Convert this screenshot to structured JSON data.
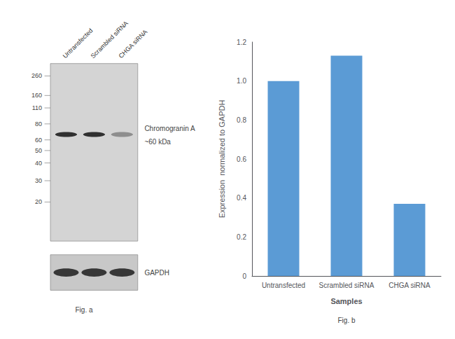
{
  "chart_data": [
    {
      "type": "western_blot",
      "categories": [
        "Untransfected",
        "Scrambled siRNA",
        "CHGA siRNA"
      ],
      "yticks": [
        260,
        160,
        110,
        80,
        60,
        50,
        40,
        30,
        20
      ],
      "series": [
        {
          "name": "Chromogranin A",
          "color": "#d4d4d4",
          "colors": [
            "#222222",
            "#222222",
            "#888888"
          ]
        },
        {
          "name": "GAPDH",
          "color": "#c8c8c8",
          "colors": [
            "#222222",
            "#222222",
            "#222222"
          ]
        }
      ],
      "annotations": [
        "~60 kDa",
        "Fig. a"
      ]
    },
    {
      "type": "bar",
      "categories": [
        "Untransfected",
        "Scrambled siRNA",
        "CHGA siRNA"
      ],
      "values": [
        1.0,
        1.13,
        0.37
      ],
      "color": "#5B9BD5",
      "xlabel": "Samples",
      "ylabel": "Expression  normalized to GAPDH",
      "ylim": [
        0,
        1.2
      ],
      "yticks": [
        0,
        0.2,
        0.4,
        0.6,
        0.8,
        {
          "value": 1.0,
          "label": "1.0"
        },
        1.2
      ],
      "grid": false,
      "annotations": [
        "Fig. b"
      ]
    }
  ]
}
